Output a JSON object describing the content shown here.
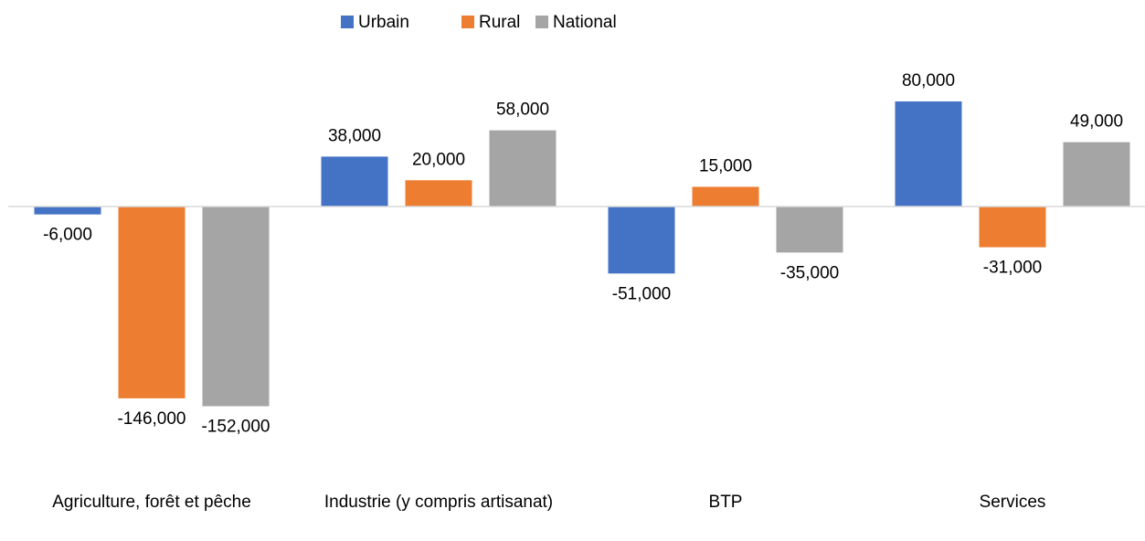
{
  "chart_data": {
    "type": "bar",
    "categories": [
      "Agriculture, forêt et  pêche",
      "Industrie (y compris artisanat)",
      "BTP",
      "Services"
    ],
    "series": [
      {
        "name": "Urbain",
        "color": "#4472c4",
        "values": [
          -6000,
          38000,
          -51000,
          80000
        ],
        "value_labels": [
          "-6,000",
          "38,000",
          "-51,000",
          "80,000"
        ]
      },
      {
        "name": "Rural",
        "color": "#ed7d31",
        "values": [
          -146000,
          20000,
          15000,
          -31000
        ],
        "value_labels": [
          "-146,000",
          "20,000",
          "15,000",
          "-31,000"
        ]
      },
      {
        "name": "National",
        "color": "#a5a5a5",
        "values": [
          -152000,
          58000,
          -35000,
          49000
        ],
        "value_labels": [
          "-152,000",
          "58,000",
          "-35,000",
          "49,000"
        ]
      }
    ],
    "ylim": [
      -160000,
      100000
    ],
    "legend": "top"
  }
}
